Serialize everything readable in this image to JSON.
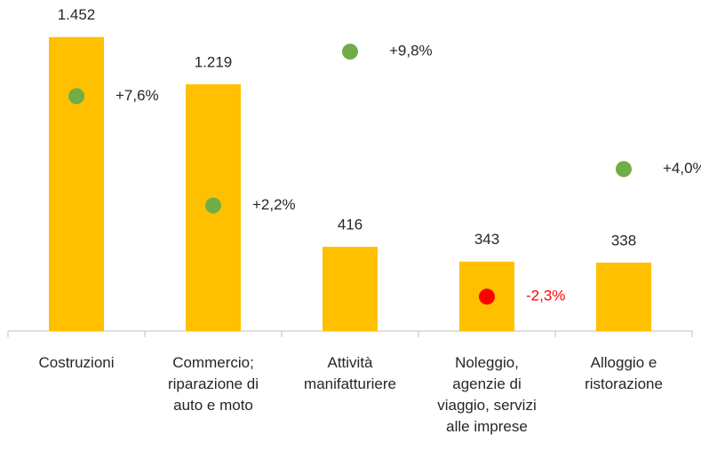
{
  "chart_data": {
    "type": "bar",
    "categories": [
      "Costruzioni",
      "Commercio;\nriparazione di\nauto e moto",
      "Attività\nmanifatturiere",
      "Noleggio,\nagenzie di\nviaggio, servizi\nalle imprese",
      "Alloggio e\nristorazione"
    ],
    "ylim": [
      0,
      1600
    ],
    "y2lim": [
      -4,
      12
    ],
    "series": [
      {
        "type": "bar",
        "color": "#FFC000",
        "values": [
          1452,
          1219,
          416,
          343,
          338
        ],
        "value_labels": [
          "1.452",
          "1.219",
          "416",
          "343",
          "338"
        ]
      },
      {
        "type": "scatter",
        "axis": "y2",
        "colors": [
          "#70AD47",
          "#70AD47",
          "#70AD47",
          "#FF0000",
          "#70AD47"
        ],
        "values": [
          7.6,
          2.2,
          9.8,
          -2.3,
          4.0
        ],
        "value_labels": [
          "+7,6%",
          "+2,2%",
          "+9,8%",
          "-2,3%",
          "+4,0%"
        ]
      }
    ]
  }
}
